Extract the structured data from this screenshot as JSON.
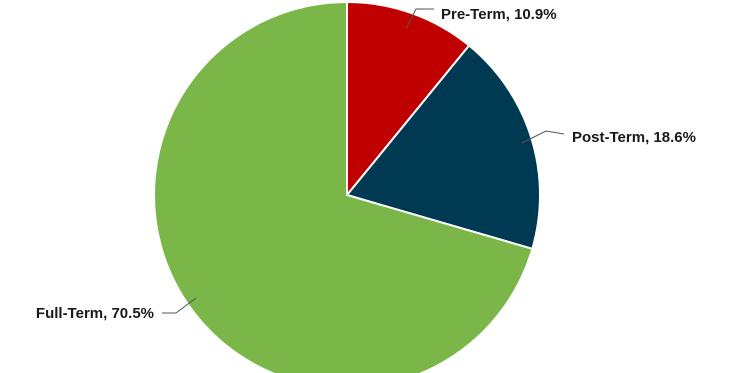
{
  "chart_data": {
    "type": "pie",
    "title": "",
    "start_angle_deg": 0,
    "direction": "clockwise",
    "slices": [
      {
        "label": "Pre-Term",
        "value": 10.9,
        "display": "Pre-Term, 10.9%",
        "color": "#c00000"
      },
      {
        "label": "Post-Term",
        "value": 18.6,
        "display": "Post-Term, 18.6%",
        "color": "#003a52"
      },
      {
        "label": "Full-Term",
        "value": 70.5,
        "display": "Full-Term, 70.5%",
        "color": "#7ab648"
      }
    ],
    "slice_border_color": "#ffffff",
    "connector_color": "#555555",
    "legend": "none"
  }
}
